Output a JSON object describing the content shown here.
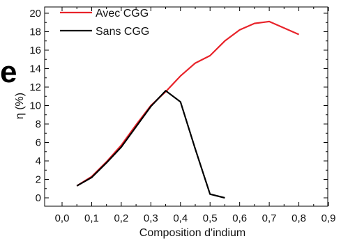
{
  "panel_letter": "e",
  "chart_data": {
    "type": "line",
    "xlabel": "Composition d'indium",
    "ylabel": "η (%)",
    "xlim": [
      0.0,
      0.9
    ],
    "ylim": [
      0,
      20
    ],
    "xticks": [
      "0,0",
      "0,1",
      "0,2",
      "0,3",
      "0,4",
      "0,5",
      "0,6",
      "0,7",
      "0,8",
      "0,9"
    ],
    "yticks": [
      "0",
      "2",
      "4",
      "6",
      "8",
      "10",
      "12",
      "14",
      "16",
      "18",
      "20"
    ],
    "legend_position": "top-left",
    "series": [
      {
        "name": "Avec CGG",
        "color": "#e8232a",
        "x": [
          0.05,
          0.1,
          0.15,
          0.2,
          0.25,
          0.3,
          0.35,
          0.4,
          0.45,
          0.5,
          0.55,
          0.6,
          0.65,
          0.7,
          0.8
        ],
        "y": [
          1.3,
          2.3,
          3.9,
          5.7,
          7.9,
          10.0,
          11.5,
          13.2,
          14.6,
          15.4,
          17.0,
          18.2,
          18.9,
          19.1,
          17.7
        ]
      },
      {
        "name": "Sans CGG",
        "color": "#000000",
        "x": [
          0.05,
          0.1,
          0.15,
          0.2,
          0.25,
          0.3,
          0.35,
          0.4,
          0.45,
          0.5,
          0.55
        ],
        "y": [
          1.3,
          2.2,
          3.8,
          5.5,
          7.7,
          9.9,
          11.6,
          10.4,
          5.3,
          0.4,
          0.0
        ]
      }
    ]
  }
}
